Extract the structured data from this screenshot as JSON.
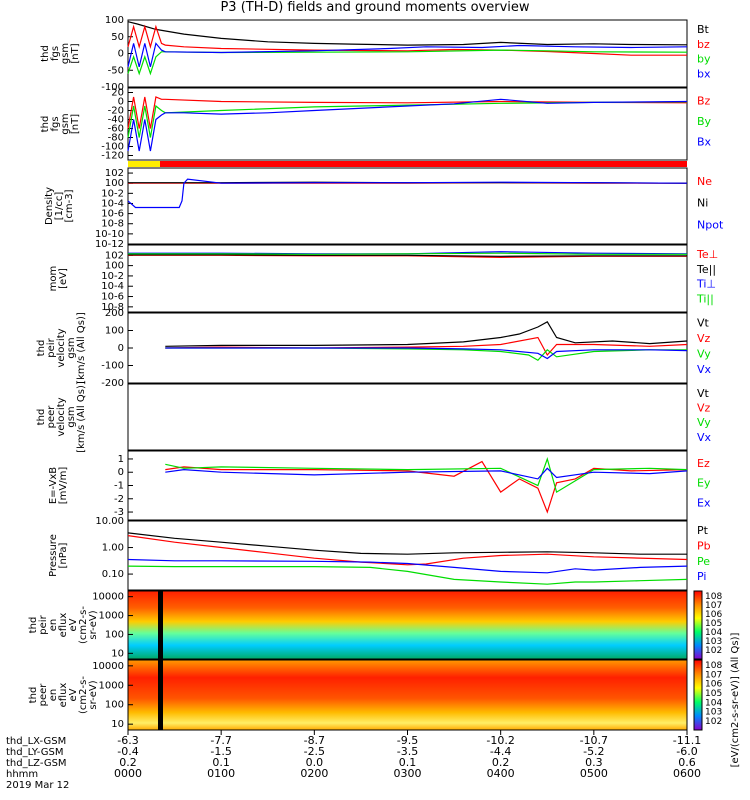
{
  "title": "P3 (TH-D) fields and ground moments overview",
  "footer": {
    "row_labels": [
      "thd_LX-GSM",
      "thd_LY-GSM",
      "thd_LZ-GSM",
      "hhmm",
      "2019 Mar 12"
    ],
    "LX": [
      "-6.3",
      "-7.7",
      "-8.7",
      "-9.5",
      "-10.2",
      "-10.7",
      "-11.1"
    ],
    "LY": [
      "-0.4",
      "-1.5",
      "-2.5",
      "-3.5",
      "-4.4",
      "-5.2",
      "-6.0"
    ],
    "LZ": [
      "0.2",
      "0.1",
      "0.0",
      "0.1",
      "0.2",
      "0.3",
      "0.6"
    ],
    "hhmm": [
      "0000",
      "0100",
      "0200",
      "0300",
      "0400",
      "0500",
      "0600"
    ]
  },
  "colors": {
    "black": "#000000",
    "red": "#ff0000",
    "green": "#00dd00",
    "blue": "#0000ff"
  },
  "spec_colorbars": [
    {
      "name": "ion-flux-colorbar",
      "ticks": [
        "10^8",
        "10^7",
        "10^6",
        "10^5",
        "10^4",
        "10^3",
        "10^2"
      ]
    },
    {
      "name": "electron-flux-colorbar",
      "ticks": [
        "10^8",
        "10^7",
        "10^6",
        "10^5",
        "10^4",
        "10^3",
        "10^2"
      ]
    }
  ],
  "colorbar_label": "[eV/(cm2-s-sr-eV)] (All Qs)]",
  "chart_data": [
    {
      "type": "line",
      "ylabel": [
        "thd",
        "fgs",
        "gsm",
        "[nT]"
      ],
      "ylim": [
        -100,
        100
      ],
      "yticks": [
        "100",
        "50",
        "0",
        "-50",
        "-100"
      ],
      "legend": [
        "Bt",
        "bz",
        "by",
        "bx"
      ],
      "legend_colors": [
        "#000000",
        "#ff0000",
        "#00dd00",
        "#0000ff"
      ],
      "series": [
        {
          "name": "Bt",
          "color": "#000000",
          "x": [
            0,
            10,
            30,
            60,
            100,
            150,
            200,
            240,
            300,
            360,
            400,
            450,
            500,
            540,
            600
          ],
          "y": [
            95,
            88,
            72,
            58,
            45,
            35,
            30,
            28,
            25,
            27,
            33,
            27,
            29,
            27,
            26
          ]
        },
        {
          "name": "bz",
          "color": "#ff0000",
          "x": [
            0,
            6,
            12,
            18,
            24,
            30,
            36,
            40,
            60,
            100,
            200,
            300,
            350,
            400,
            450,
            500,
            540,
            600
          ],
          "y": [
            20,
            80,
            20,
            80,
            20,
            80,
            30,
            25,
            20,
            15,
            10,
            8,
            12,
            10,
            6,
            0,
            -5,
            -5
          ]
        },
        {
          "name": "by",
          "color": "#00dd00",
          "x": [
            0,
            6,
            12,
            18,
            24,
            30,
            36,
            40,
            100,
            200,
            300,
            400,
            450,
            500,
            600
          ],
          "y": [
            -60,
            -10,
            -60,
            -10,
            -60,
            -10,
            5,
            5,
            3,
            4,
            5,
            10,
            8,
            5,
            4
          ]
        },
        {
          "name": "bx",
          "color": "#0000ff",
          "x": [
            0,
            6,
            12,
            18,
            24,
            30,
            36,
            40,
            100,
            200,
            280,
            320,
            380,
            420,
            480,
            540,
            600
          ],
          "y": [
            -40,
            30,
            -40,
            30,
            -40,
            30,
            10,
            5,
            3,
            8,
            15,
            20,
            18,
            24,
            20,
            18,
            20
          ]
        }
      ]
    },
    {
      "type": "line",
      "ylabel": [
        "thd",
        "fgs",
        "gsm",
        "[nT]"
      ],
      "ylim": [
        -130,
        30
      ],
      "yticks": [
        "20",
        "0",
        "-20",
        "-40",
        "-60",
        "-80",
        "-100",
        "-120"
      ],
      "legend": [
        "Bz",
        "By",
        "Bx"
      ],
      "legend_colors": [
        "#ff0000",
        "#00dd00",
        "#0000ff"
      ],
      "series": [
        {
          "name": "Bz",
          "color": "#ff0000",
          "x": [
            0,
            6,
            12,
            18,
            24,
            30,
            36,
            40,
            100,
            200,
            300,
            400,
            500,
            600
          ],
          "y": [
            -60,
            10,
            -60,
            10,
            -60,
            10,
            5,
            5,
            0,
            -2,
            -3,
            0,
            -2,
            -3
          ]
        },
        {
          "name": "By",
          "color": "#00dd00",
          "x": [
            0,
            6,
            12,
            18,
            24,
            30,
            36,
            40,
            100,
            200,
            300,
            400,
            500,
            600
          ],
          "y": [
            -80,
            -10,
            -80,
            -10,
            -80,
            -10,
            -20,
            -25,
            -20,
            -12,
            -8,
            -4,
            -2,
            -1
          ]
        },
        {
          "name": "Bx",
          "color": "#0000ff",
          "x": [
            0,
            6,
            12,
            18,
            24,
            30,
            36,
            40,
            60,
            100,
            150,
            200,
            300,
            350,
            400,
            450,
            500,
            600
          ],
          "y": [
            -110,
            -40,
            -110,
            -40,
            -110,
            -40,
            -30,
            -25,
            -25,
            -28,
            -25,
            -20,
            -10,
            -5,
            5,
            -4,
            -2,
            0
          ]
        }
      ]
    },
    {
      "type": "line",
      "ylabel": [
        "Density",
        "[1/cc]",
        "[cm-3]"
      ],
      "ylim": [
        -12,
        3
      ],
      "yticks": [
        "10^2",
        "10^0",
        "10^-2",
        "10^-4",
        "10^-6",
        "10^-8",
        "10^-10",
        "10^-12"
      ],
      "legend": [
        "Ne",
        "Ni",
        "Npot"
      ],
      "legend_colors": [
        "#ff0000",
        "#000000",
        "#0000ff"
      ],
      "series": [
        {
          "name": "Ne",
          "color": "#ff0000",
          "x": [
            0,
            60,
            100,
            200,
            300,
            400,
            500,
            600
          ],
          "y": [
            0,
            0,
            0,
            0,
            0,
            0.1,
            0,
            0
          ]
        },
        {
          "name": "Ni",
          "color": "#000000",
          "x": [
            0,
            60,
            100,
            200,
            300,
            400,
            500,
            600
          ],
          "y": [
            0.1,
            0.1,
            0.1,
            0.2,
            0.1,
            0.1,
            0.1,
            0
          ]
        },
        {
          "name": "Npot",
          "color": "#0000ff",
          "x": [
            0,
            8,
            30,
            55,
            58,
            60,
            64,
            100,
            200,
            300,
            400,
            500,
            600
          ],
          "y": [
            -3.5,
            -4.8,
            -4.8,
            -4.8,
            -3.5,
            0,
            0.8,
            0,
            0.1,
            0.1,
            0.2,
            0.1,
            0
          ]
        }
      ]
    },
    {
      "type": "line",
      "ylabel": [
        "mom",
        "[eV]"
      ],
      "ylim": [
        -9,
        4
      ],
      "yticks": [
        "10^2",
        "10^0",
        "10^-2",
        "10^-4",
        "10^-6",
        "10^-8"
      ],
      "legend": [
        "Te⊥",
        "Te||",
        "Ti⊥",
        "Ti||"
      ],
      "legend_colors": [
        "#ff0000",
        "#000000",
        "#0000ff",
        "#00dd00"
      ],
      "series": [
        {
          "name": "Te⊥",
          "color": "#ff0000",
          "x": [
            0,
            100,
            200,
            300,
            400,
            500,
            600
          ],
          "y": [
            2,
            2,
            1.9,
            1.9,
            1.6,
            1.8,
            1.8
          ]
        },
        {
          "name": "Te||",
          "color": "#000000",
          "x": [
            0,
            100,
            200,
            300,
            400,
            500,
            600
          ],
          "y": [
            2.1,
            2.1,
            2,
            2,
            1.8,
            1.9,
            1.9
          ]
        },
        {
          "name": "Ti⊥",
          "color": "#0000ff",
          "x": [
            0,
            100,
            200,
            300,
            400,
            500,
            600
          ],
          "y": [
            2.4,
            2.4,
            2.3,
            2.3,
            2.7,
            2.4,
            2.3
          ]
        },
        {
          "name": "Ti||",
          "color": "#00dd00",
          "x": [
            0,
            100,
            200,
            300,
            400,
            500,
            600
          ],
          "y": [
            2.3,
            2.3,
            2.2,
            2.3,
            2.4,
            2.2,
            2.2
          ]
        }
      ]
    },
    {
      "type": "line",
      "ylabel": [
        "thd",
        "peir",
        "velocity",
        "gsm",
        "[km/s (All Qs)]"
      ],
      "ylim": [
        -200,
        200
      ],
      "yticks": [
        "200",
        "100",
        "0",
        "-100",
        "-200"
      ],
      "legend": [
        "Vt",
        "Vz",
        "Vy",
        "Vx"
      ],
      "legend_colors": [
        "#000000",
        "#ff0000",
        "#00dd00",
        "#0000ff"
      ],
      "series": [
        {
          "name": "Vt",
          "color": "#000000",
          "x": [
            40,
            100,
            200,
            300,
            360,
            400,
            420,
            440,
            450,
            460,
            480,
            520,
            560,
            600
          ],
          "y": [
            10,
            15,
            15,
            20,
            35,
            60,
            80,
            120,
            150,
            60,
            30,
            40,
            25,
            40
          ]
        },
        {
          "name": "Vz",
          "color": "#ff0000",
          "x": [
            40,
            100,
            200,
            300,
            360,
            400,
            440,
            450,
            460,
            500,
            560,
            600
          ],
          "y": [
            0,
            5,
            0,
            5,
            10,
            20,
            60,
            -40,
            20,
            20,
            10,
            20
          ]
        },
        {
          "name": "Vy",
          "color": "#00dd00",
          "x": [
            40,
            100,
            200,
            300,
            360,
            400,
            430,
            440,
            450,
            460,
            500,
            560,
            600
          ],
          "y": [
            0,
            0,
            0,
            -5,
            -10,
            -20,
            -40,
            -70,
            -10,
            -50,
            -20,
            -10,
            -10
          ]
        },
        {
          "name": "Vx",
          "color": "#0000ff",
          "x": [
            40,
            100,
            200,
            300,
            360,
            400,
            440,
            450,
            460,
            500,
            560,
            600
          ],
          "y": [
            0,
            0,
            0,
            0,
            -5,
            -10,
            -30,
            -60,
            -20,
            -10,
            -10,
            -15
          ]
        }
      ]
    },
    {
      "type": "line",
      "ylabel": [
        "thd",
        "peer",
        "velocity",
        "gsm",
        "[km/s (All Qs)]"
      ],
      "legend": [
        "Vt",
        "Vz",
        "Vy",
        "Vx"
      ],
      "legend_colors": [
        "#000000",
        "#ff0000",
        "#00dd00",
        "#0000ff"
      ],
      "series": []
    },
    {
      "type": "line",
      "ylabel": [
        "E=-VxB",
        "[mV/m]"
      ],
      "ylim": [
        -3.6,
        1.6
      ],
      "yticks": [
        "1",
        "0",
        "-1",
        "-2",
        "-3"
      ],
      "legend": [
        "Ez",
        "Ey",
        "Ex"
      ],
      "legend_colors": [
        "#ff0000",
        "#00dd00",
        "#0000ff"
      ],
      "series": [
        {
          "name": "Ez",
          "color": "#ff0000",
          "x": [
            40,
            60,
            100,
            200,
            300,
            350,
            380,
            400,
            420,
            440,
            450,
            460,
            480,
            500,
            540,
            600
          ],
          "y": [
            0.2,
            0.4,
            0.2,
            0.2,
            0.1,
            -0.3,
            0.8,
            -1.5,
            -0.5,
            -1.2,
            -3,
            -0.8,
            -0.5,
            0.3,
            0.1,
            0.2
          ]
        },
        {
          "name": "Ey",
          "color": "#00dd00",
          "x": [
            40,
            60,
            100,
            200,
            300,
            400,
            440,
            450,
            460,
            500,
            560,
            600
          ],
          "y": [
            0.6,
            0.3,
            0.4,
            0.3,
            0.2,
            0.3,
            -1,
            1,
            -1.5,
            0.2,
            0.3,
            0.2
          ]
        },
        {
          "name": "Ex",
          "color": "#0000ff",
          "x": [
            40,
            60,
            100,
            200,
            300,
            400,
            440,
            450,
            460,
            500,
            560,
            600
          ],
          "y": [
            0,
            0.2,
            0,
            -0.2,
            0,
            0.1,
            -0.5,
            0.3,
            -0.4,
            0,
            -0.1,
            0.1
          ]
        }
      ]
    },
    {
      "type": "line",
      "ylabel": [
        "Pressure",
        "[nPa]"
      ],
      "ylim": [
        -1.6,
        1
      ],
      "yticks": [
        "10.00",
        "1.00",
        "0.10"
      ],
      "ytick_values": [
        1,
        0,
        -1
      ],
      "legend": [
        "Pt",
        "Pb",
        "Pe",
        "Pi"
      ],
      "legend_colors": [
        "#000000",
        "#ff0000",
        "#00dd00",
        "#0000ff"
      ],
      "series": [
        {
          "name": "Pt",
          "color": "#000000",
          "x": [
            0,
            50,
            100,
            150,
            200,
            250,
            300,
            350,
            400,
            450,
            500,
            550,
            600
          ],
          "y": [
            0.55,
            0.35,
            0.2,
            0.05,
            -0.1,
            -0.22,
            -0.25,
            -0.2,
            -0.18,
            -0.16,
            -0.2,
            -0.25,
            -0.25
          ]
        },
        {
          "name": "Pb",
          "color": "#ff0000",
          "x": [
            0,
            50,
            100,
            150,
            200,
            250,
            300,
            320,
            360,
            400,
            450,
            500,
            600
          ],
          "y": [
            0.45,
            0.2,
            0.0,
            -0.2,
            -0.4,
            -0.55,
            -0.65,
            -0.62,
            -0.4,
            -0.3,
            -0.25,
            -0.35,
            -0.45
          ]
        },
        {
          "name": "Pe",
          "color": "#00dd00",
          "x": [
            0,
            50,
            100,
            200,
            260,
            300,
            350,
            400,
            450,
            480,
            500,
            550,
            600
          ],
          "y": [
            -0.7,
            -0.72,
            -0.72,
            -0.72,
            -0.75,
            -0.9,
            -1.2,
            -1.3,
            -1.38,
            -1.3,
            -1.3,
            -1.25,
            -1.2
          ]
        },
        {
          "name": "Pi",
          "color": "#0000ff",
          "x": [
            0,
            50,
            100,
            200,
            260,
            300,
            350,
            400,
            450,
            480,
            500,
            550,
            600
          ],
          "y": [
            -0.45,
            -0.5,
            -0.5,
            -0.52,
            -0.55,
            -0.6,
            -0.75,
            -0.9,
            -0.95,
            -0.8,
            -0.85,
            -0.75,
            -0.7
          ]
        }
      ]
    },
    {
      "type": "heatmap",
      "ylabel": [
        "thd",
        "peir",
        "en",
        "eflux",
        "eV",
        "(cm2-s-",
        "sr-eV)"
      ],
      "yticks": [
        "10000",
        "1000",
        "100",
        "10"
      ],
      "ylog": [
        0.7,
        4.3
      ],
      "ytick_values": [
        4,
        3,
        2,
        1
      ]
    },
    {
      "type": "heatmap",
      "ylabel": [
        "thd",
        "peer",
        "en",
        "eflux",
        "eV",
        "(cm2-s-",
        "sr-eV)"
      ],
      "yticks": [
        "10000",
        "1000",
        "100",
        "10"
      ],
      "ylog": [
        0.7,
        4.3
      ],
      "ytick_values": [
        4,
        3,
        2,
        1
      ]
    }
  ]
}
